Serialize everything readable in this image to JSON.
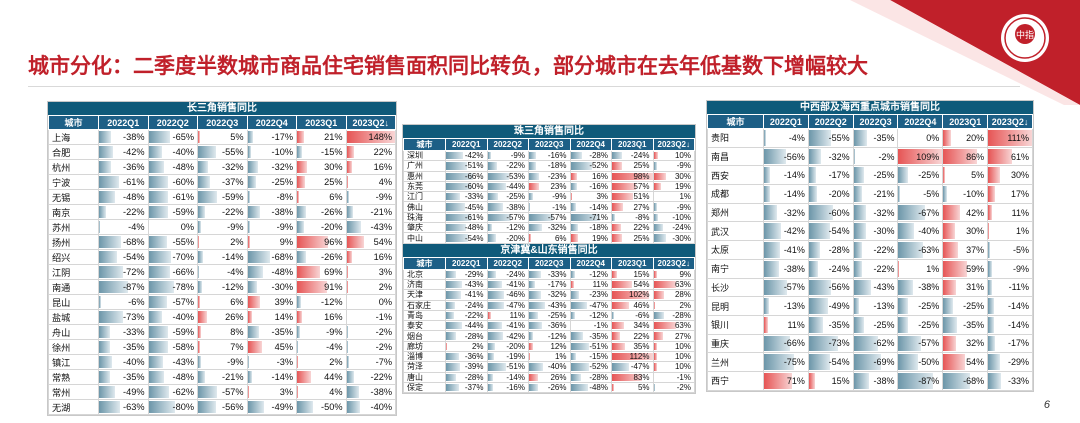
{
  "title": "城市分化：二季度半数城市商品住宅销售面积同比转负，部分城市在去年低基数下增幅较大",
  "page_number": "6",
  "logo": {
    "text": "中指"
  },
  "colors": {
    "accent": "#c0202a",
    "header": "#1d5f86",
    "panel_title": "#0f5a7a",
    "positive_bar": "#e65555",
    "negative_bar": "#6c96a9"
  },
  "columns": [
    "城市",
    "2022Q1",
    "2022Q2",
    "2022Q3",
    "2022Q4",
    "2023Q1",
    "2023Q2↓"
  ],
  "tables": [
    {
      "title": "长三角销售同比",
      "max": 148,
      "rows": [
        {
          "city": "上海",
          "values": [
            -38,
            -65,
            5,
            -17,
            21,
            148
          ]
        },
        {
          "city": "合肥",
          "values": [
            -42,
            -40,
            -55,
            -10,
            -15,
            22
          ]
        },
        {
          "city": "杭州",
          "values": [
            -36,
            -48,
            -32,
            -32,
            30,
            16
          ]
        },
        {
          "city": "宁波",
          "values": [
            -61,
            -60,
            -37,
            -25,
            25,
            4
          ]
        },
        {
          "city": "无锡",
          "values": [
            -48,
            -61,
            -59,
            -8,
            6,
            -9
          ]
        },
        {
          "city": "南京",
          "values": [
            -22,
            -59,
            -22,
            -38,
            -26,
            -21
          ]
        },
        {
          "city": "苏州",
          "values": [
            -4,
            0,
            -9,
            -9,
            -20,
            -43
          ]
        },
        {
          "city": "扬州",
          "values": [
            -68,
            -55,
            2,
            9,
            96,
            54
          ]
        },
        {
          "city": "绍兴",
          "values": [
            -54,
            -70,
            -14,
            -68,
            -26,
            16
          ]
        },
        {
          "city": "江阴",
          "values": [
            -72,
            -66,
            -4,
            -48,
            69,
            3
          ]
        },
        {
          "city": "南通",
          "values": [
            -87,
            -78,
            -12,
            -30,
            91,
            2
          ]
        },
        {
          "city": "昆山",
          "values": [
            -6,
            -57,
            6,
            39,
            -12,
            0
          ]
        },
        {
          "city": "盐城",
          "values": [
            -73,
            -40,
            26,
            14,
            16,
            -1
          ]
        },
        {
          "city": "舟山",
          "values": [
            -33,
            -59,
            8,
            -35,
            -9,
            -2
          ]
        },
        {
          "city": "徐州",
          "values": [
            -35,
            -58,
            7,
            45,
            -4,
            -2
          ]
        },
        {
          "city": "镇江",
          "values": [
            -40,
            -43,
            -9,
            -3,
            2,
            -7
          ]
        },
        {
          "city": "常熟",
          "values": [
            -35,
            -48,
            -21,
            -14,
            44,
            -22
          ]
        },
        {
          "city": "常州",
          "values": [
            -49,
            -62,
            -57,
            3,
            4,
            -38
          ]
        },
        {
          "city": "无湖",
          "values": [
            -63,
            -80,
            -56,
            -49,
            -50,
            -40
          ]
        }
      ]
    },
    {
      "title": "珠三角销售同比",
      "max": 98,
      "rows": [
        {
          "city": "深圳",
          "values": [
            -42,
            -9,
            -16,
            -28,
            -24,
            10
          ]
        },
        {
          "city": "广州",
          "values": [
            -51,
            -22,
            -18,
            -52,
            25,
            -9
          ]
        },
        {
          "city": "惠州",
          "values": [
            -66,
            -53,
            -23,
            16,
            98,
            30
          ]
        },
        {
          "city": "东莞",
          "values": [
            -60,
            -44,
            23,
            -16,
            57,
            19
          ]
        },
        {
          "city": "江门",
          "values": [
            -33,
            -25,
            -9,
            3,
            51,
            1
          ]
        },
        {
          "city": "佛山",
          "values": [
            -45,
            -38,
            -1,
            -14,
            27,
            -9
          ]
        },
        {
          "city": "珠海",
          "values": [
            -61,
            -57,
            -57,
            -71,
            -8,
            -10
          ]
        },
        {
          "city": "肇庆",
          "values": [
            -48,
            -12,
            -32,
            -18,
            22,
            -24
          ]
        },
        {
          "city": "中山",
          "values": [
            -54,
            -20,
            6,
            19,
            25,
            -30
          ]
        }
      ]
    },
    {
      "title": "京津冀&山东销售同比",
      "max": 112,
      "rows": [
        {
          "city": "北京",
          "values": [
            -29,
            -24,
            -33,
            -12,
            15,
            9
          ]
        },
        {
          "city": "济南",
          "values": [
            -43,
            -41,
            -17,
            11,
            54,
            63
          ]
        },
        {
          "city": "天津",
          "values": [
            -41,
            -46,
            -32,
            -23,
            102,
            28
          ]
        },
        {
          "city": "石家庄",
          "values": [
            -24,
            -47,
            -43,
            -47,
            46,
            2
          ]
        },
        {
          "city": "青岛",
          "values": [
            -22,
            11,
            -25,
            -12,
            -6,
            -28
          ]
        },
        {
          "city": "泰安",
          "values": [
            -44,
            -41,
            -36,
            -1,
            34,
            63
          ]
        },
        {
          "city": "烟台",
          "values": [
            -28,
            -42,
            -12,
            -35,
            22,
            27
          ]
        },
        {
          "city": "廊坊",
          "values": [
            2,
            -20,
            12,
            -51,
            35,
            10
          ]
        },
        {
          "city": "淄博",
          "values": [
            -36,
            -19,
            1,
            -15,
            112,
            10
          ]
        },
        {
          "city": "菏泽",
          "values": [
            -39,
            -51,
            -40,
            -52,
            -47,
            10
          ]
        },
        {
          "city": "唐山",
          "values": [
            -28,
            -14,
            26,
            -28,
            83,
            -1
          ]
        },
        {
          "city": "保定",
          "values": [
            -37,
            -16,
            -26,
            -48,
            5,
            -2
          ]
        }
      ]
    },
    {
      "title": "中西部及海西重点城市销售同比",
      "max": 111,
      "rows": [
        {
          "city": "贵阳",
          "values": [
            -4,
            -55,
            -35,
            0,
            20,
            111
          ]
        },
        {
          "city": "南昌",
          "values": [
            -56,
            -32,
            -2,
            109,
            86,
            61
          ]
        },
        {
          "city": "西安",
          "values": [
            -14,
            -17,
            -25,
            -25,
            5,
            30
          ]
        },
        {
          "city": "成都",
          "values": [
            -14,
            -20,
            -21,
            -5,
            -10,
            17
          ]
        },
        {
          "city": "郑州",
          "values": [
            -32,
            -60,
            -32,
            -67,
            42,
            11
          ]
        },
        {
          "city": "武汉",
          "values": [
            -42,
            -54,
            -30,
            -40,
            30,
            1
          ]
        },
        {
          "city": "太原",
          "values": [
            -41,
            -28,
            -22,
            -63,
            37,
            -5
          ]
        },
        {
          "city": "南宁",
          "values": [
            -38,
            -24,
            -22,
            1,
            59,
            -9
          ]
        },
        {
          "city": "长沙",
          "values": [
            -57,
            -56,
            -43,
            -38,
            31,
            -11
          ]
        },
        {
          "city": "昆明",
          "values": [
            -13,
            -49,
            -13,
            -25,
            -25,
            -14
          ]
        },
        {
          "city": "银川",
          "values": [
            11,
            -35,
            -25,
            -25,
            -35,
            -14
          ]
        },
        {
          "city": "重庆",
          "values": [
            -66,
            -73,
            -62,
            -57,
            32,
            -17
          ]
        },
        {
          "city": "兰州",
          "values": [
            -75,
            -54,
            -69,
            -50,
            54,
            -29
          ]
        },
        {
          "city": "西宁",
          "values": [
            71,
            15,
            -38,
            -87,
            -68,
            -33
          ]
        }
      ]
    }
  ]
}
